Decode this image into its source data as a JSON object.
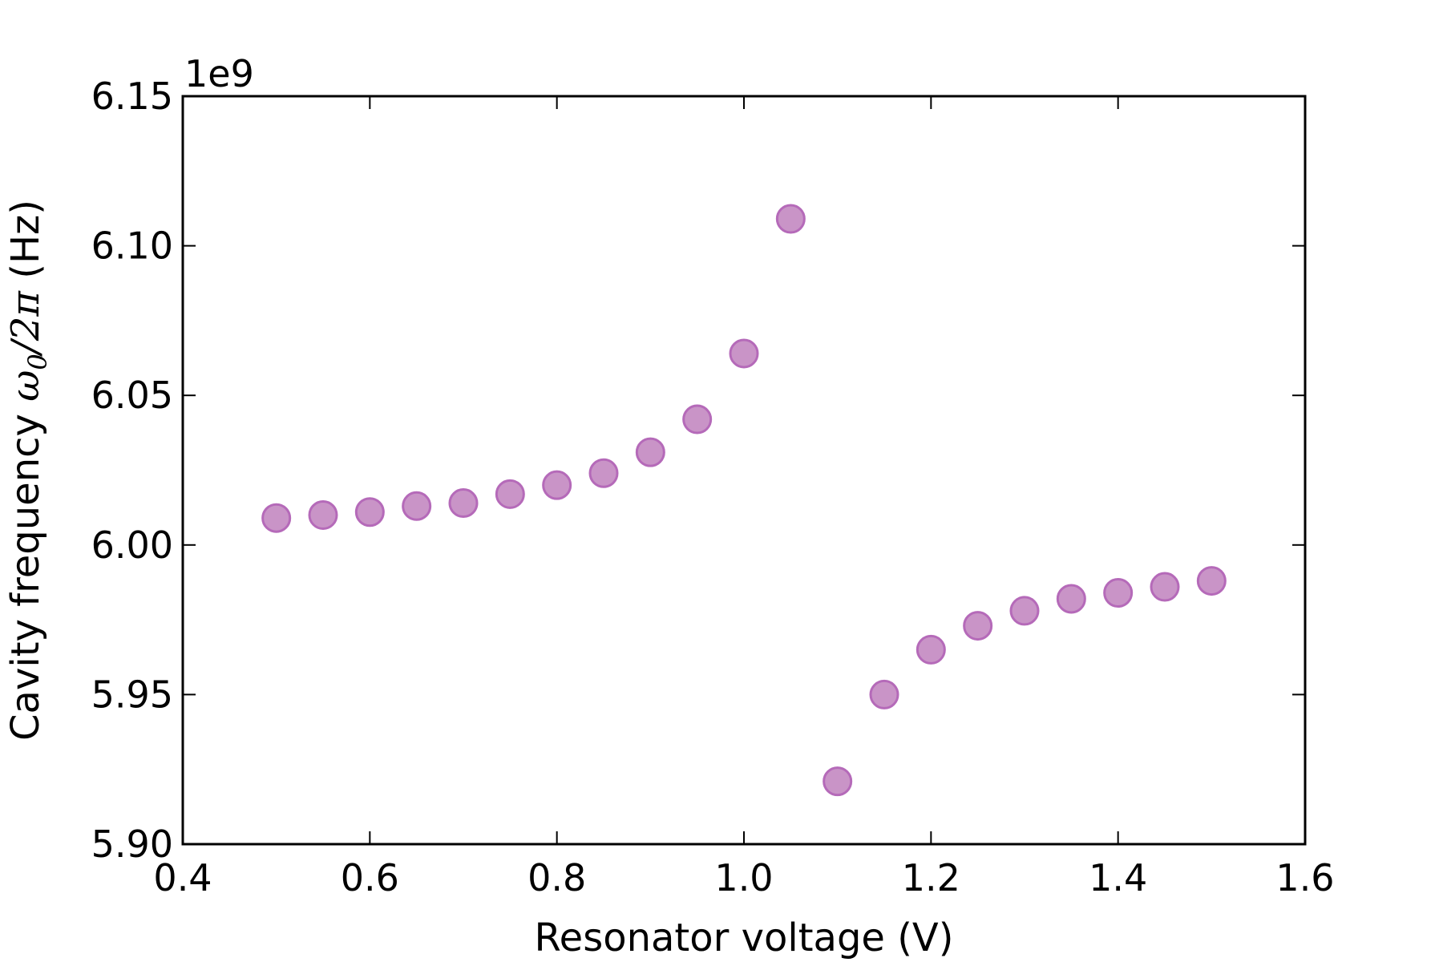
{
  "chart_data": {
    "type": "scatter",
    "xlabel": "Resonator voltage (V)",
    "ylabel_prefix": "Cavity frequency ",
    "ylabel_math_symbol": "ω",
    "ylabel_math_subscript": "0",
    "ylabel_math_rest": "/2π",
    "ylabel_suffix": " (Hz)",
    "y_offset_label": "1e9",
    "xlim": [
      0.4,
      1.6
    ],
    "ylim": [
      5.9,
      6.15
    ],
    "y_scale_factor": 1000000000,
    "xticks": [
      0.4,
      0.6,
      0.8,
      1.0,
      1.2,
      1.4,
      1.6
    ],
    "xtick_labels": [
      "0.4",
      "0.6",
      "0.8",
      "1.0",
      "1.2",
      "1.4",
      "1.6"
    ],
    "yticks": [
      5.9,
      5.95,
      6.0,
      6.05,
      6.1,
      6.15
    ],
    "ytick_labels": [
      "5.90",
      "5.95",
      "6.00",
      "6.05",
      "6.10",
      "6.15"
    ],
    "grid": false,
    "marker_color": "#c994c7",
    "marker_edge_color": "#b56ab9",
    "series": [
      {
        "points": [
          {
            "x": 0.5,
            "y": 6.009
          },
          {
            "x": 0.55,
            "y": 6.01
          },
          {
            "x": 0.6,
            "y": 6.011
          },
          {
            "x": 0.65,
            "y": 6.013
          },
          {
            "x": 0.7,
            "y": 6.014
          },
          {
            "x": 0.75,
            "y": 6.017
          },
          {
            "x": 0.8,
            "y": 6.02
          },
          {
            "x": 0.85,
            "y": 6.024
          },
          {
            "x": 0.9,
            "y": 6.031
          },
          {
            "x": 0.95,
            "y": 6.042
          },
          {
            "x": 1.0,
            "y": 6.064
          },
          {
            "x": 1.05,
            "y": 6.109
          },
          {
            "x": 1.1,
            "y": 5.921
          },
          {
            "x": 1.15,
            "y": 5.95
          },
          {
            "x": 1.2,
            "y": 5.965
          },
          {
            "x": 1.25,
            "y": 5.973
          },
          {
            "x": 1.3,
            "y": 5.978
          },
          {
            "x": 1.35,
            "y": 5.982
          },
          {
            "x": 1.4,
            "y": 5.984
          },
          {
            "x": 1.45,
            "y": 5.986
          },
          {
            "x": 1.5,
            "y": 5.988
          }
        ]
      }
    ]
  }
}
